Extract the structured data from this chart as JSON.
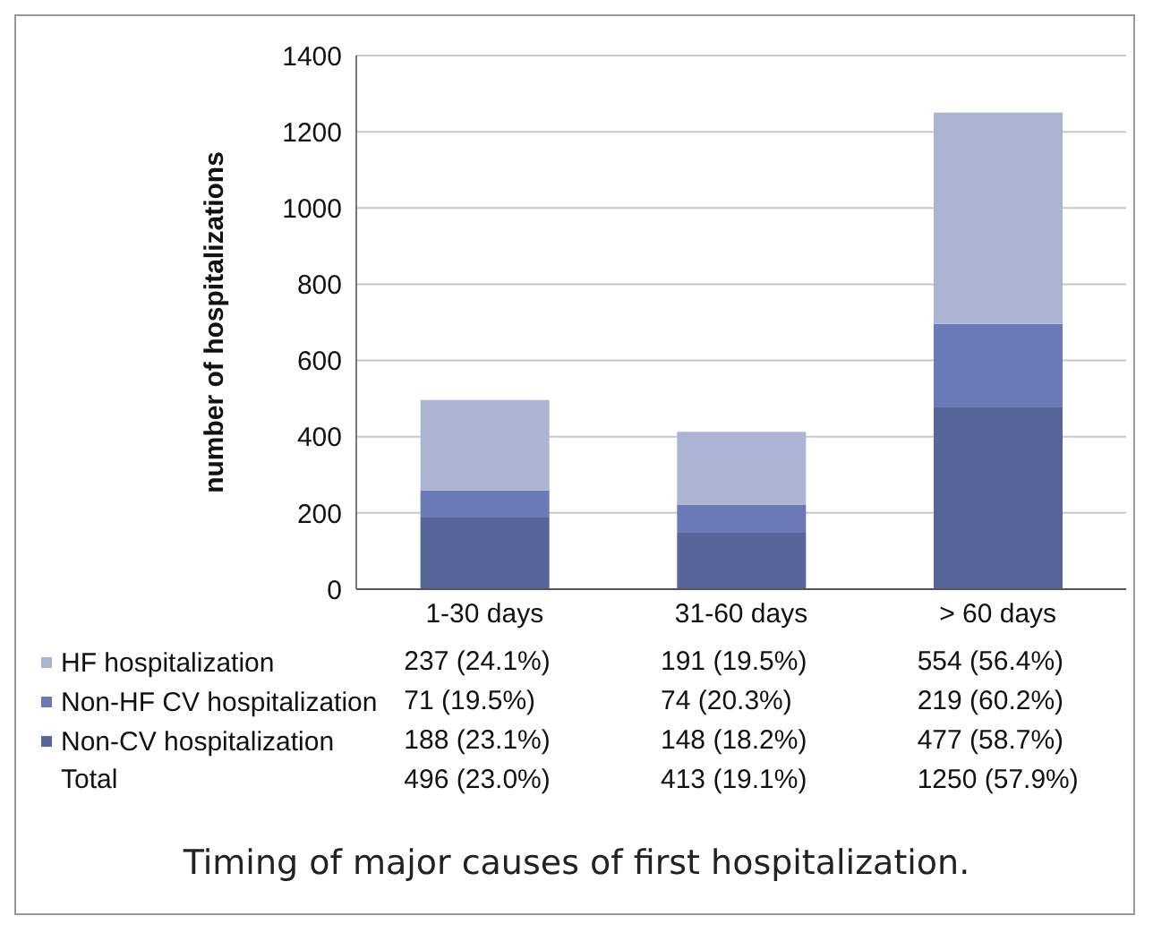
{
  "chart_data": {
    "type": "bar",
    "title": "Timing of major causes of first hospitalization.",
    "ylabel": "number of hospitalizations",
    "categories": [
      "1-30 days",
      "31-60 days",
      "> 60 days"
    ],
    "stacked": true,
    "ylim": [
      0,
      1400
    ],
    "yticks": [
      0,
      200,
      400,
      600,
      800,
      1000,
      1200,
      1400
    ],
    "grid": "y",
    "legend": "bottom",
    "series": [
      {
        "name": "Non-CV hospitalization",
        "color": "#58659a",
        "values": [
          188,
          148,
          477
        ],
        "value_labels": [
          "188 (23.1%)",
          "148 (18.2%)",
          "477 (58.7%)"
        ]
      },
      {
        "name": "Non-HF CV hospitalization",
        "color": "#6b7ab6",
        "values": [
          71,
          74,
          219
        ],
        "value_labels": [
          "71 (19.5%)",
          "74 (20.3%)",
          "219 (60.2%)"
        ]
      },
      {
        "name": "HF hospitalization",
        "color": "#adb4d3",
        "values": [
          237,
          191,
          554
        ],
        "value_labels": [
          "237 (24.1%)",
          "191 (19.5%)",
          "554 (56.4%)"
        ]
      }
    ],
    "annotations": [
      "Total",
      "496 (23.0%)",
      "413 (19.1%)",
      "1250 (57.9%)"
    ]
  }
}
